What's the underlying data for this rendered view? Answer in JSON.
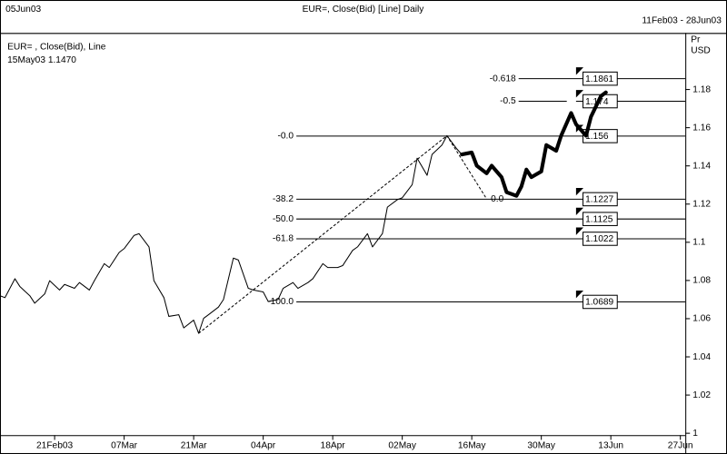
{
  "chart_data": {
    "type": "line",
    "title": "EUR=, Close(Bid) [Line] Daily",
    "header_left": "05Jun03",
    "header_right": "11Feb03 - 28Jun03",
    "legend_lines": [
      "EUR= , Close(Bid), Line",
      "15May03 1.1470"
    ],
    "y_axis_label": [
      "Pr",
      "USD"
    ],
    "xlim": [
      "2003-02-10",
      "2003-06-28"
    ],
    "xticks": [
      {
        "value": "2003-02-21",
        "label": "21Feb03"
      },
      {
        "value": "2003-03-07",
        "label": "07Mar"
      },
      {
        "value": "2003-03-21",
        "label": "21Mar"
      },
      {
        "value": "2003-04-04",
        "label": "04Apr"
      },
      {
        "value": "2003-04-18",
        "label": "18Apr"
      },
      {
        "value": "2003-05-02",
        "label": "02May"
      },
      {
        "value": "2003-05-16",
        "label": "16May"
      },
      {
        "value": "2003-05-30",
        "label": "30May"
      },
      {
        "value": "2003-06-13",
        "label": "13Jun"
      },
      {
        "value": "2003-06-27",
        "label": "27Jun"
      }
    ],
    "ylim": [
      0.999,
      1.2096
    ],
    "yticks": [
      1,
      1.02,
      1.04,
      1.06,
      1.08,
      1.1,
      1.12,
      1.14,
      1.16,
      1.18
    ],
    "series": [
      {
        "color": "#000000",
        "width": 1,
        "x": [
          "2003-02-10",
          "2003-02-11",
          "2003-02-13",
          "2003-02-14",
          "2003-02-16",
          "2003-02-17",
          "2003-02-19",
          "2003-02-20",
          "2003-02-22",
          "2003-02-23",
          "2003-02-25",
          "2003-02-26",
          "2003-02-28",
          "2003-03-01",
          "2003-03-03",
          "2003-03-04",
          "2003-03-06",
          "2003-03-07",
          "2003-03-09",
          "2003-03-10",
          "2003-03-12",
          "2003-03-13",
          "2003-03-15",
          "2003-03-16",
          "2003-03-18",
          "2003-03-19",
          "2003-03-21",
          "2003-03-22",
          "2003-03-23",
          "2003-03-24",
          "2003-03-26",
          "2003-03-27",
          "2003-03-29",
          "2003-03-30",
          "2003-04-01",
          "2003-04-02",
          "2003-04-04",
          "2003-04-05",
          "2003-04-07",
          "2003-04-08",
          "2003-04-10",
          "2003-04-11",
          "2003-04-13",
          "2003-04-14",
          "2003-04-16",
          "2003-04-17",
          "2003-04-19",
          "2003-04-20",
          "2003-04-22",
          "2003-04-23",
          "2003-04-25",
          "2003-04-26",
          "2003-04-28",
          "2003-04-29",
          "2003-05-01",
          "2003-05-02",
          "2003-05-04",
          "2003-05-05",
          "2003-05-07",
          "2003-05-08",
          "2003-05-10",
          "2003-05-11",
          "2003-05-13",
          "2003-05-14"
        ],
        "values": [
          1.072,
          1.071,
          1.0809,
          1.0769,
          1.072,
          1.0681,
          1.073,
          1.0799,
          1.075,
          1.0779,
          1.0759,
          1.0789,
          1.075,
          1.0799,
          1.0888,
          1.0868,
          1.0947,
          1.0967,
          1.1036,
          1.1045,
          1.0976,
          1.0799,
          1.071,
          1.0612,
          1.0621,
          1.0552,
          1.0592,
          1.0523,
          1.0602,
          1.0621,
          1.0661,
          1.07,
          1.0917,
          1.0907,
          1.0759,
          1.075,
          1.074,
          1.069,
          1.07,
          1.0759,
          1.0789,
          1.0759,
          1.0789,
          1.0809,
          1.0888,
          1.0868,
          1.0868,
          1.0878,
          1.0957,
          1.0976,
          1.1045,
          1.0976,
          1.1045,
          1.1184,
          1.1223,
          1.1233,
          1.1302,
          1.144,
          1.1351,
          1.146,
          1.1509,
          1.1558,
          1.1489,
          1.146
        ]
      },
      {
        "color": "#000000",
        "width": 4,
        "x": [
          "2003-05-14",
          "2003-05-16",
          "2003-05-17",
          "2003-05-19",
          "2003-05-20",
          "2003-05-22",
          "2003-05-23",
          "2003-05-25",
          "2003-05-26",
          "2003-05-27",
          "2003-05-28",
          "2003-05-30",
          "2003-05-31",
          "2003-06-02",
          "2003-06-03",
          "2003-06-05",
          "2003-06-06",
          "2003-06-08",
          "2003-06-09",
          "2003-06-11",
          "2003-06-12"
        ],
        "values": [
          1.146,
          1.147,
          1.1401,
          1.1361,
          1.1401,
          1.1341,
          1.1262,
          1.1243,
          1.1292,
          1.1381,
          1.1341,
          1.1371,
          1.1509,
          1.1479,
          1.1558,
          1.1677,
          1.1618,
          1.1558,
          1.1657,
          1.1765,
          1.1785
        ]
      }
    ],
    "fibonacci": {
      "low_label": "0.0",
      "levels": [
        {
          "label": "-0.618",
          "value": 1.1861
        },
        {
          "label": "-0.5",
          "value": 1.174
        },
        {
          "label": "-0.0",
          "value": 1.156
        },
        {
          "label": "-38.2",
          "value": 1.1227
        },
        {
          "label": "-50.0",
          "value": 1.1125
        },
        {
          "label": "-61.8",
          "value": 1.1022
        },
        {
          "label": "-100.0",
          "value": 1.0689
        }
      ]
    }
  }
}
